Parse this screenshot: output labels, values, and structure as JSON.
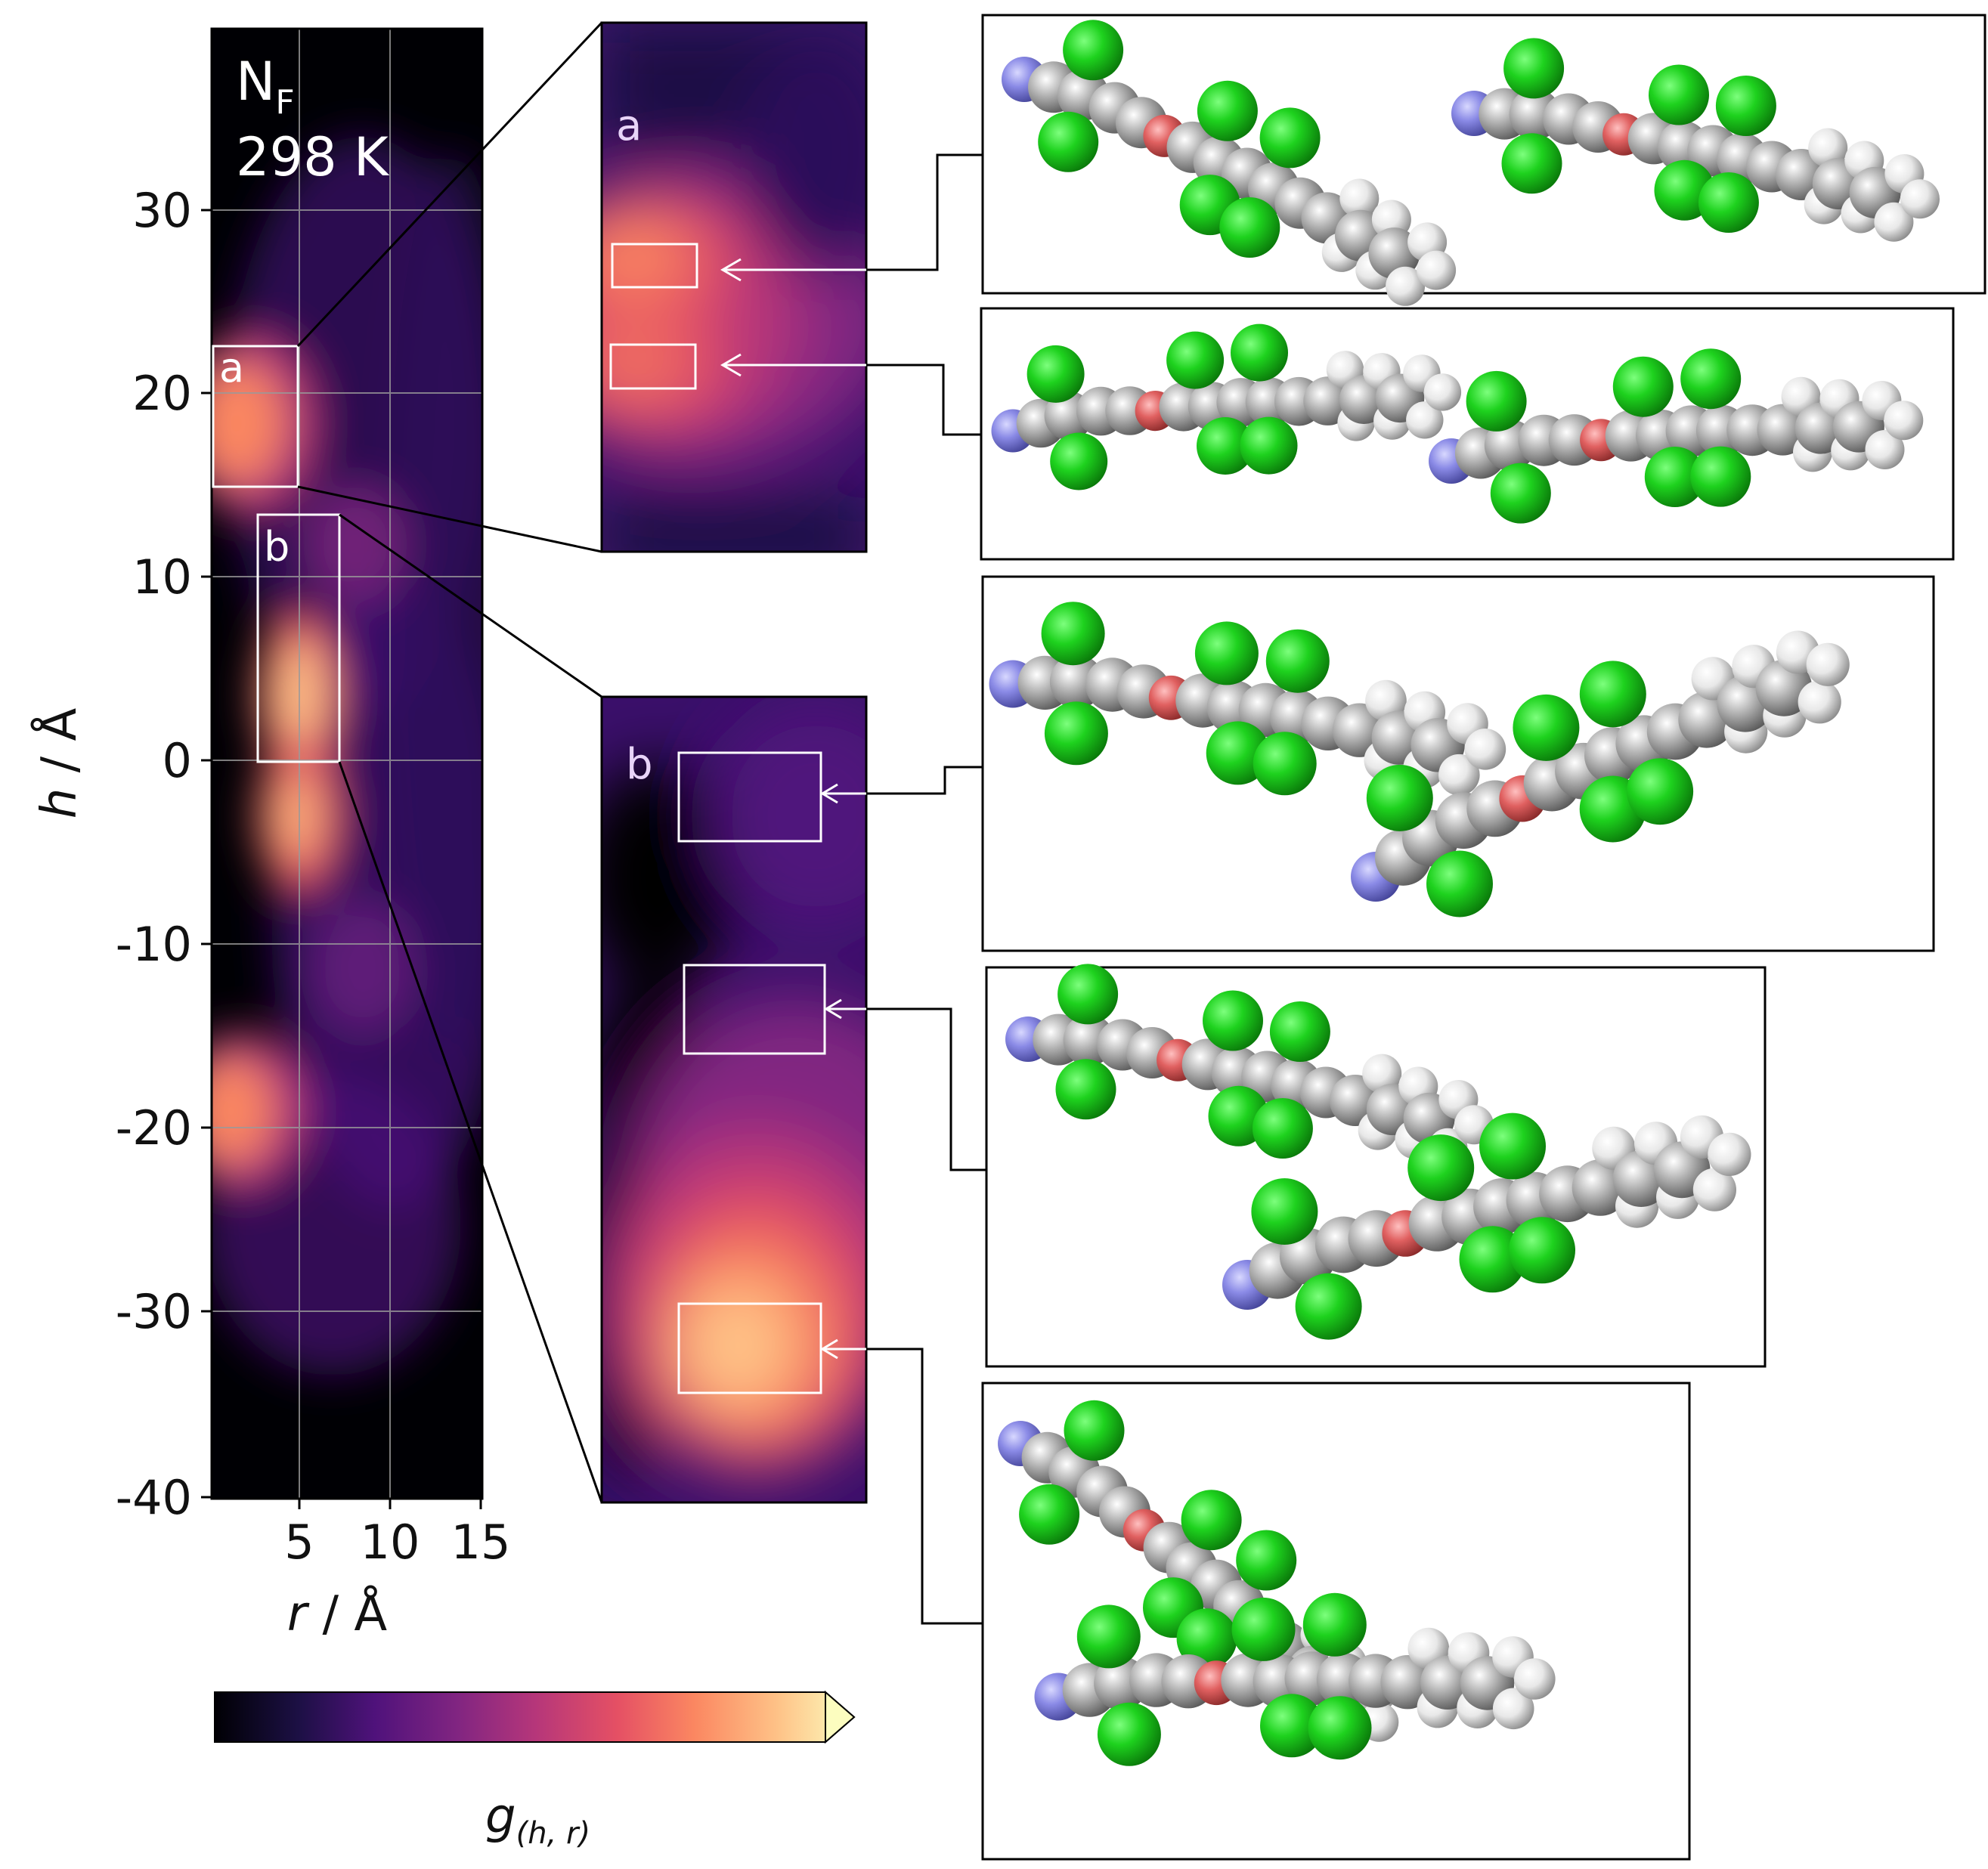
{
  "chart_data": {
    "type": "heatmap",
    "title_lines": [
      "N",
      "298 K"
    ],
    "title_subscript": "F",
    "xlabel_var": "r",
    "xlabel_unit": " / Å",
    "ylabel_var": "h",
    "ylabel_unit": " / Å",
    "xlim": [
      0,
      15
    ],
    "ylim": [
      -40,
      40
    ],
    "x_ticks": [
      "5",
      "10",
      "15"
    ],
    "x_tick_values": [
      5,
      10,
      15
    ],
    "y_ticks": [
      "30",
      "20",
      "10",
      "0",
      "-10",
      "-20",
      "-30",
      "-40"
    ],
    "y_tick_values": [
      30,
      20,
      10,
      0,
      -10,
      -20,
      -30,
      -40
    ],
    "grid": true,
    "colormap": "magma",
    "colorbar_label_var": "g",
    "colorbar_label_sub": "(h, r)",
    "colorbar_extend": "max",
    "hotspots": [
      {
        "h": 20,
        "r": 1.5,
        "intensity": 0.85
      },
      {
        "h": 3,
        "r": 5,
        "intensity": 0.95
      },
      {
        "h": -5,
        "r": 5,
        "intensity": 0.9
      },
      {
        "h": -19,
        "r": 1.5,
        "intensity": 0.8
      }
    ],
    "regions": [
      {
        "label": "a",
        "r_range": [
          0,
          5
        ],
        "h_range": [
          15.5,
          23
        ]
      },
      {
        "label": "b",
        "r_range": [
          2.5,
          7
        ],
        "h_range": [
          0,
          13.5
        ]
      }
    ],
    "inset_a_label": "a",
    "inset_b_label": "b"
  },
  "legend_colors": {
    "carbon": "#a9a9a9",
    "hydrogen": "#ececec",
    "fluorine": "#1ecf1e",
    "oxygen": "#e06464",
    "nitrogen": "#8a8ae6"
  }
}
